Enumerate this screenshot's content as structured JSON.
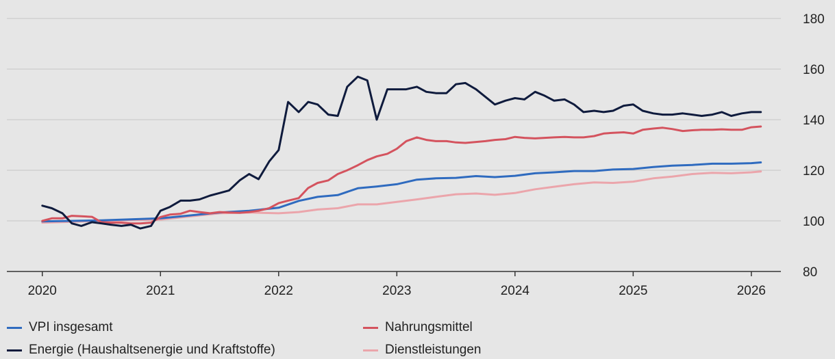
{
  "chart_data": {
    "type": "line",
    "title": "",
    "xlabel": "",
    "ylabel": "",
    "xlim": [
      2019.7,
      2026.25
    ],
    "ylim": [
      80,
      180
    ],
    "x_ticks": [
      "2020",
      "2021",
      "2022",
      "2023",
      "2024",
      "2025",
      "2026"
    ],
    "y_ticks": [
      "180",
      "160",
      "140",
      "120",
      "100",
      "80"
    ],
    "grid": "horizontal",
    "legend_position": "bottom",
    "series": [
      {
        "name": "VPI insgesamt",
        "color": "#2f6bbf",
        "x": [
          2020.0,
          2020.5,
          2021.0,
          2021.5,
          2021.75,
          2022.0,
          2022.17,
          2022.33,
          2022.5,
          2022.67,
          2022.83,
          2023.0,
          2023.17,
          2023.33,
          2023.5,
          2023.67,
          2023.83,
          2024.0,
          2024.17,
          2024.33,
          2024.5,
          2024.67,
          2024.83,
          2025.0,
          2025.17,
          2025.33,
          2025.5,
          2025.67,
          2025.83,
          2026.0,
          2026.08
        ],
        "y": [
          99.8,
          100.2,
          101.0,
          103.3,
          104.0,
          105.2,
          107.9,
          109.5,
          110.2,
          112.9,
          113.6,
          114.5,
          116.3,
          116.8,
          117.0,
          117.7,
          117.3,
          117.8,
          118.8,
          119.2,
          119.7,
          119.7,
          120.3,
          120.5,
          121.3,
          121.8,
          122.1,
          122.6,
          122.6,
          122.8,
          123.1
        ]
      },
      {
        "name": "Energie (Haushaltsenergie und Kraftstoffe)",
        "color": "#0f1b3d",
        "x": [
          2020.0,
          2020.08,
          2020.17,
          2020.25,
          2020.33,
          2020.42,
          2020.5,
          2020.58,
          2020.67,
          2020.75,
          2020.83,
          2020.92,
          2021.0,
          2021.08,
          2021.17,
          2021.25,
          2021.33,
          2021.42,
          2021.5,
          2021.58,
          2021.67,
          2021.75,
          2021.83,
          2021.92,
          2022.0,
          2022.08,
          2022.17,
          2022.25,
          2022.33,
          2022.42,
          2022.5,
          2022.58,
          2022.67,
          2022.75,
          2022.83,
          2022.92,
          2023.0,
          2023.08,
          2023.17,
          2023.25,
          2023.33,
          2023.42,
          2023.5,
          2023.58,
          2023.67,
          2023.75,
          2023.83,
          2023.92,
          2024.0,
          2024.08,
          2024.17,
          2024.25,
          2024.33,
          2024.42,
          2024.5,
          2024.58,
          2024.67,
          2024.75,
          2024.83,
          2024.92,
          2025.0,
          2025.08,
          2025.17,
          2025.25,
          2025.33,
          2025.42,
          2025.5,
          2025.58,
          2025.67,
          2025.75,
          2025.83,
          2025.92,
          2026.0,
          2026.08
        ],
        "y": [
          106.0,
          105.0,
          103.0,
          99.0,
          98.0,
          99.5,
          99.0,
          98.5,
          98.0,
          98.5,
          97.0,
          98.0,
          104.0,
          105.5,
          108.0,
          108.0,
          108.5,
          110.0,
          111.0,
          112.0,
          116.0,
          118.5,
          116.5,
          123.5,
          128.0,
          147.0,
          143.0,
          147.0,
          146.0,
          142.0,
          141.5,
          153.0,
          157.0,
          155.5,
          140.0,
          152.0,
          152.0,
          152.0,
          153.0,
          151.0,
          150.5,
          150.5,
          154.0,
          154.5,
          152.0,
          149.0,
          146.0,
          147.5,
          148.5,
          148.0,
          151.0,
          149.5,
          147.5,
          148.0,
          146.0,
          143.0,
          143.5,
          143.0,
          143.5,
          145.5,
          146.0,
          143.5,
          142.5,
          142.0,
          142.0,
          142.5,
          142.0,
          141.5,
          142.0,
          143.0,
          141.5,
          142.5,
          143.0,
          143.0
        ]
      },
      {
        "name": "Nahrungsmittel",
        "color": "#d4535e",
        "x": [
          2020.0,
          2020.08,
          2020.17,
          2020.25,
          2020.33,
          2020.42,
          2020.5,
          2020.58,
          2020.67,
          2020.75,
          2020.83,
          2020.92,
          2021.0,
          2021.08,
          2021.17,
          2021.25,
          2021.33,
          2021.42,
          2021.5,
          2021.58,
          2021.67,
          2021.75,
          2021.83,
          2021.92,
          2022.0,
          2022.08,
          2022.17,
          2022.25,
          2022.33,
          2022.42,
          2022.5,
          2022.58,
          2022.67,
          2022.75,
          2022.83,
          2022.92,
          2023.0,
          2023.08,
          2023.17,
          2023.25,
          2023.33,
          2023.42,
          2023.5,
          2023.58,
          2023.67,
          2023.75,
          2023.83,
          2023.92,
          2024.0,
          2024.08,
          2024.17,
          2024.25,
          2024.33,
          2024.42,
          2024.5,
          2024.58,
          2024.67,
          2024.75,
          2024.83,
          2024.92,
          2025.0,
          2025.08,
          2025.17,
          2025.25,
          2025.33,
          2025.42,
          2025.5,
          2025.58,
          2025.67,
          2025.75,
          2025.83,
          2025.92,
          2026.0,
          2026.08
        ],
        "y": [
          100.0,
          101.0,
          101.0,
          102.0,
          101.8,
          101.6,
          99.5,
          99.3,
          99.3,
          99.0,
          99.0,
          99.3,
          101.5,
          102.5,
          102.8,
          104.0,
          103.5,
          103.0,
          103.5,
          103.3,
          103.2,
          103.5,
          104.0,
          105.0,
          107.0,
          108.0,
          109.0,
          113.0,
          115.0,
          116.0,
          118.5,
          120.0,
          122.0,
          124.0,
          125.5,
          126.5,
          128.5,
          131.5,
          133.0,
          132.0,
          131.5,
          131.5,
          131.0,
          130.8,
          131.2,
          131.5,
          132.0,
          132.3,
          133.2,
          132.8,
          132.6,
          132.8,
          133.0,
          133.2,
          133.0,
          133.0,
          133.5,
          134.5,
          134.8,
          135.0,
          134.5,
          136.0,
          136.5,
          136.8,
          136.3,
          135.5,
          135.8,
          136.0,
          136.0,
          136.2,
          136.0,
          136.0,
          137.0,
          137.3
        ]
      },
      {
        "name": "Dienstleistungen",
        "color": "#eba5ab",
        "x": [
          2020.0,
          2020.5,
          2021.0,
          2021.5,
          2021.75,
          2022.0,
          2022.17,
          2022.33,
          2022.5,
          2022.67,
          2022.83,
          2023.0,
          2023.17,
          2023.33,
          2023.5,
          2023.67,
          2023.83,
          2024.0,
          2024.17,
          2024.33,
          2024.5,
          2024.67,
          2024.83,
          2025.0,
          2025.17,
          2025.33,
          2025.5,
          2025.67,
          2025.83,
          2026.0,
          2026.08
        ],
        "y": [
          99.3,
          100.0,
          100.5,
          103.0,
          103.3,
          103.0,
          103.5,
          104.5,
          105.0,
          106.5,
          106.5,
          107.5,
          108.5,
          109.5,
          110.5,
          110.8,
          110.3,
          111.0,
          112.5,
          113.5,
          114.5,
          115.2,
          115.0,
          115.5,
          116.8,
          117.5,
          118.5,
          119.0,
          118.8,
          119.2,
          119.5
        ]
      }
    ]
  }
}
